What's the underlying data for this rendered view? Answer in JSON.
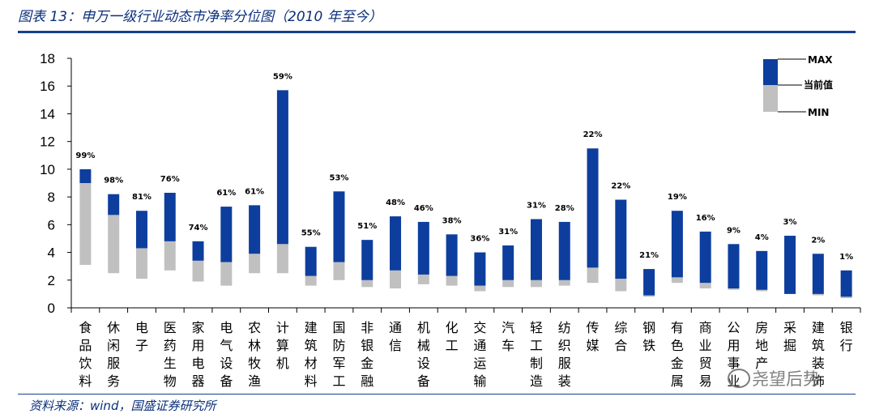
{
  "header": {
    "title": "图表 13：申万一级行业动态市净率分位图（2010 年至今）"
  },
  "footer": {
    "source": "资料来源：wind，国盛证券研究所"
  },
  "watermark": {
    "text": "尧望后势"
  },
  "colors": {
    "range_high": "#0d3e9e",
    "range_low": "#c0c0c0",
    "rule": "#163f8f",
    "title": "#0a2f7a"
  },
  "chart_data": {
    "type": "bar",
    "ylim": [
      0,
      18
    ],
    "yticks": [
      0,
      2,
      4,
      6,
      8,
      10,
      12,
      14,
      16,
      18
    ],
    "legend": {
      "placement": "top-right",
      "max_label": "MAX",
      "current_label": "当前值",
      "min_label": "MIN"
    },
    "categories": [
      {
        "name": "食品饮料",
        "max": 10.0,
        "current": 9.0,
        "min": 3.1,
        "pct": "99%"
      },
      {
        "name": "休闲服务",
        "max": 8.2,
        "current": 6.7,
        "min": 2.5,
        "pct": "98%"
      },
      {
        "name": "电子",
        "max": 7.0,
        "current": 4.3,
        "min": 2.1,
        "pct": "81%"
      },
      {
        "name": "医药生物",
        "max": 8.3,
        "current": 4.8,
        "min": 2.7,
        "pct": "76%"
      },
      {
        "name": "家用电器",
        "max": 4.8,
        "current": 3.4,
        "min": 1.9,
        "pct": "74%"
      },
      {
        "name": "电气设备",
        "max": 7.3,
        "current": 3.3,
        "min": 1.6,
        "pct": "61%"
      },
      {
        "name": "农林牧渔",
        "max": 7.4,
        "current": 3.9,
        "min": 2.5,
        "pct": "61%"
      },
      {
        "name": "计算机",
        "max": 15.7,
        "current": 4.6,
        "min": 2.5,
        "pct": "59%"
      },
      {
        "name": "建筑材料",
        "max": 4.4,
        "current": 2.3,
        "min": 1.6,
        "pct": "55%"
      },
      {
        "name": "国防军工",
        "max": 8.4,
        "current": 3.3,
        "min": 2.0,
        "pct": "53%"
      },
      {
        "name": "非银金融",
        "max": 4.9,
        "current": 2.0,
        "min": 1.5,
        "pct": "51%"
      },
      {
        "name": "通信",
        "max": 6.6,
        "current": 2.7,
        "min": 1.4,
        "pct": "48%"
      },
      {
        "name": "机械设备",
        "max": 6.2,
        "current": 2.4,
        "min": 1.7,
        "pct": "46%"
      },
      {
        "name": "化工",
        "max": 5.3,
        "current": 2.3,
        "min": 1.6,
        "pct": "38%"
      },
      {
        "name": "交通运输",
        "max": 4.0,
        "current": 1.6,
        "min": 1.2,
        "pct": "36%"
      },
      {
        "name": "汽车",
        "max": 4.5,
        "current": 2.0,
        "min": 1.5,
        "pct": "31%"
      },
      {
        "name": "轻工制造",
        "max": 6.4,
        "current": 2.0,
        "min": 1.5,
        "pct": "31%"
      },
      {
        "name": "纺织服装",
        "max": 6.2,
        "current": 2.0,
        "min": 1.6,
        "pct": "28%"
      },
      {
        "name": "传媒",
        "max": 11.5,
        "current": 2.9,
        "min": 1.8,
        "pct": "22%"
      },
      {
        "name": "综合",
        "max": 7.8,
        "current": 2.1,
        "min": 1.2,
        "pct": "22%"
      },
      {
        "name": "钢铁",
        "max": 2.8,
        "current": 0.9,
        "min": 0.8,
        "pct": "21%"
      },
      {
        "name": "有色金属",
        "max": 7.0,
        "current": 2.2,
        "min": 1.8,
        "pct": "19%"
      },
      {
        "name": "商业贸易",
        "max": 5.5,
        "current": 1.8,
        "min": 1.4,
        "pct": "16%"
      },
      {
        "name": "公用事业",
        "max": 4.6,
        "current": 1.4,
        "min": 1.3,
        "pct": "9%"
      },
      {
        "name": "房地产",
        "max": 4.1,
        "current": 1.3,
        "min": 1.2,
        "pct": "4%"
      },
      {
        "name": "采掘",
        "max": 5.2,
        "current": 1.0,
        "min": 1.0,
        "pct": "3%"
      },
      {
        "name": "建筑装饰",
        "max": 3.9,
        "current": 1.0,
        "min": 0.9,
        "pct": "2%"
      },
      {
        "name": "银行",
        "max": 2.7,
        "current": 0.8,
        "min": 0.7,
        "pct": "1%"
      }
    ]
  }
}
